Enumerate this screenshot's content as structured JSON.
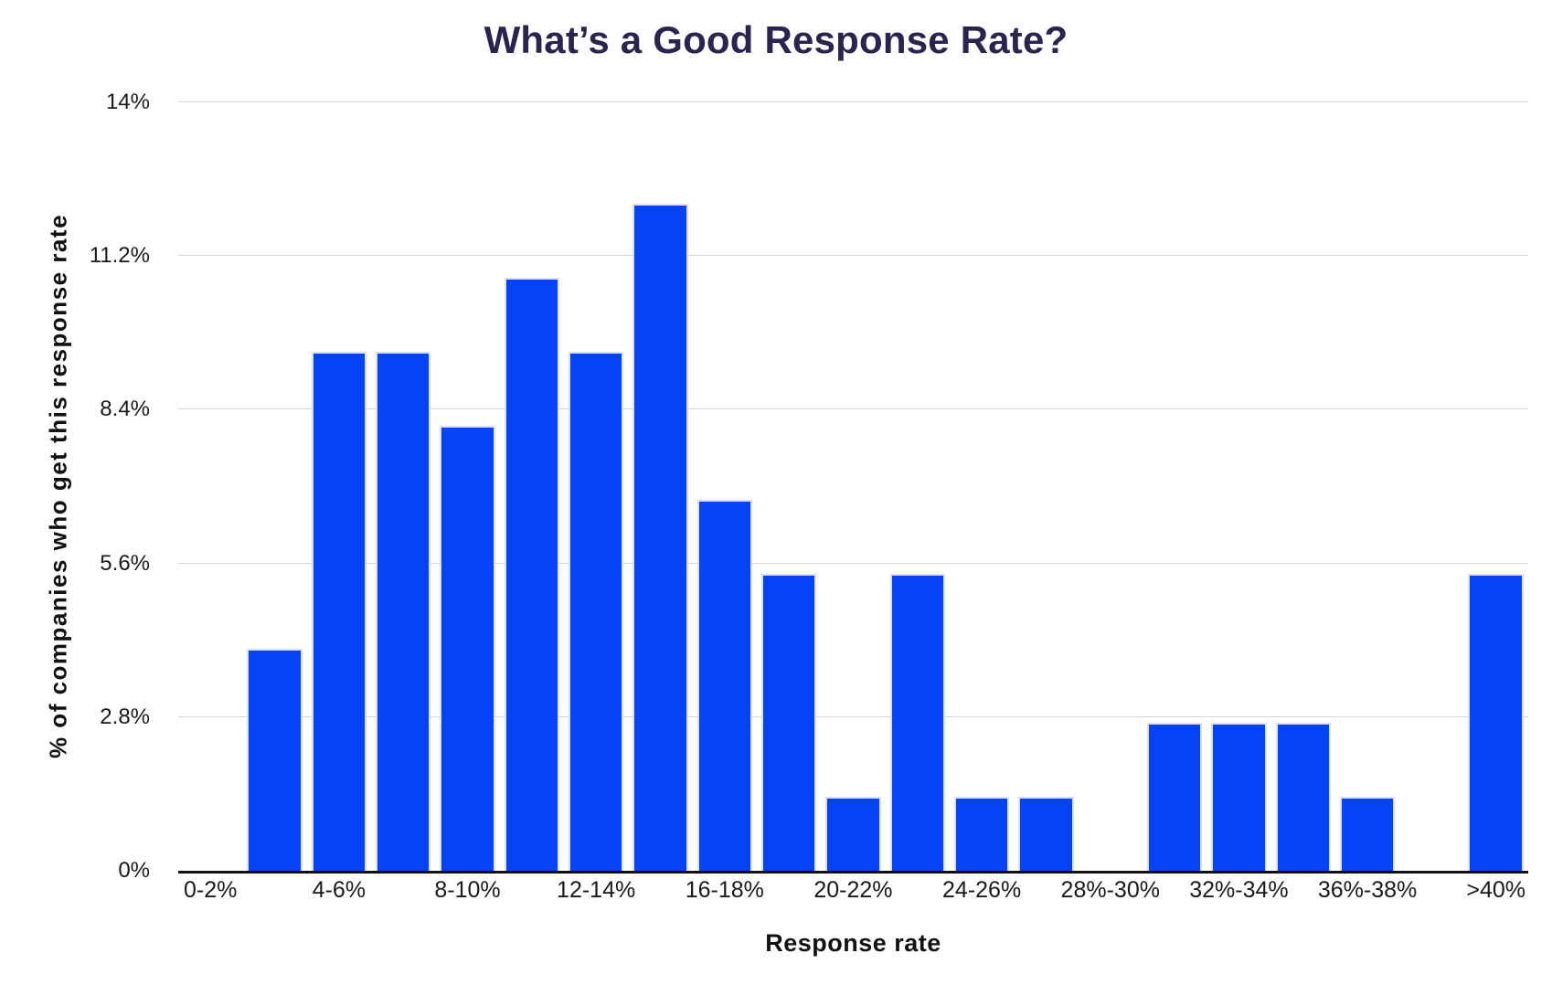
{
  "colors": {
    "bar": "#0543F7",
    "bar_border": "#D8E0F6",
    "title_text": "#2A2550",
    "axis_line": "#111111",
    "gridline": "#D6D6D6",
    "tick_text": "#1A1A1A",
    "background": "#FFFFFF"
  },
  "chart_data": {
    "type": "bar",
    "title": "What’s a Good Response Rate?",
    "xlabel": "Response rate",
    "ylabel": "% of companies who get this response rate",
    "ylim": [
      0,
      14
    ],
    "grid": "horizontal-light",
    "legend": "none",
    "yticks": [
      {
        "value": 0,
        "label": "0%"
      },
      {
        "value": 2.8,
        "label": "2.8%"
      },
      {
        "value": 5.6,
        "label": "5.6%"
      },
      {
        "value": 8.4,
        "label": "8.4%"
      },
      {
        "value": 11.2,
        "label": "11.2%"
      },
      {
        "value": 14,
        "label": "14%"
      }
    ],
    "x_tick_labels": [
      "0-2%",
      "4-6%",
      "8-10%",
      "12-14%",
      "16-18%",
      "20-22%",
      "24-26%",
      "28%-30%",
      "32%-34%",
      "36%-38%",
      ">40%"
    ],
    "bins": [
      {
        "bin": "0-2%",
        "tick_label": "0-2%",
        "value": 0
      },
      {
        "bin": "2-4%",
        "tick_label": "",
        "value": 4.05
      },
      {
        "bin": "4-6%",
        "tick_label": "4-6%",
        "value": 9.46
      },
      {
        "bin": "6-8%",
        "tick_label": "",
        "value": 9.46
      },
      {
        "bin": "8-10%",
        "tick_label": "8-10%",
        "value": 8.11
      },
      {
        "bin": "10-12%",
        "tick_label": "",
        "value": 10.81
      },
      {
        "bin": "12-14%",
        "tick_label": "12-14%",
        "value": 9.46
      },
      {
        "bin": "14-16%",
        "tick_label": "",
        "value": 12.16
      },
      {
        "bin": "16-18%",
        "tick_label": "16-18%",
        "value": 6.76
      },
      {
        "bin": "18-20%",
        "tick_label": "",
        "value": 5.41
      },
      {
        "bin": "20-22%",
        "tick_label": "20-22%",
        "value": 1.35
      },
      {
        "bin": "22-24%",
        "tick_label": "",
        "value": 5.41
      },
      {
        "bin": "24-26%",
        "tick_label": "24-26%",
        "value": 1.35
      },
      {
        "bin": "26-28%",
        "tick_label": "",
        "value": 1.35
      },
      {
        "bin": "28-30%",
        "tick_label": "28%-30%",
        "value": 0
      },
      {
        "bin": "30-32%",
        "tick_label": "",
        "value": 2.7
      },
      {
        "bin": "32-34%",
        "tick_label": "32%-34%",
        "value": 2.7
      },
      {
        "bin": "34-36%",
        "tick_label": "",
        "value": 2.7
      },
      {
        "bin": "36-38%",
        "tick_label": "36%-38%",
        "value": 1.35
      },
      {
        "bin": "38-40%",
        "tick_label": "",
        "value": 0
      },
      {
        "bin": ">40%",
        "tick_label": ">40%",
        "value": 5.41
      }
    ]
  }
}
